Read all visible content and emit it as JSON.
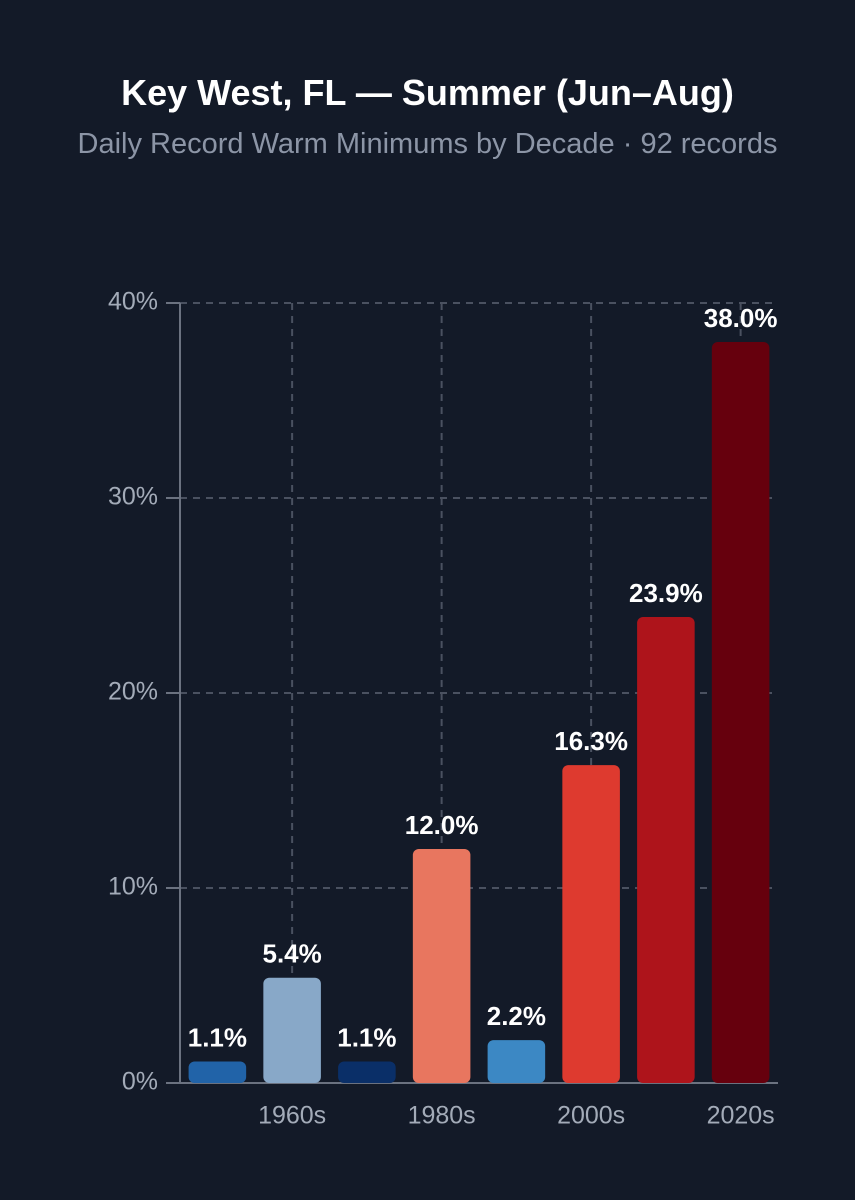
{
  "chart_data": {
    "type": "bar",
    "title": "Key West, FL — Summer (Jun–Aug)",
    "subtitle": "Daily Record Warm Minimums by Decade · 92 records",
    "categories": [
      null,
      "1960s",
      null,
      "1980s",
      null,
      "2000s",
      null,
      "2020s"
    ],
    "values": [
      1.1,
      5.4,
      1.1,
      12.0,
      2.2,
      16.3,
      23.9,
      38.0
    ],
    "value_labels": [
      "1.1%",
      "5.4%",
      "1.1%",
      "12.0%",
      "2.2%",
      "16.3%",
      "23.9%",
      "38.0%"
    ],
    "colors": [
      "#2163a8",
      "#88a8c8",
      "#0a2f68",
      "#e8765f",
      "#3c88c4",
      "#de3a2f",
      "#ae141b",
      "#66000d"
    ],
    "ylim": [
      0,
      40
    ],
    "yticks": [
      {
        "value": 0,
        "label": "0%"
      },
      {
        "value": 10,
        "label": "10%"
      },
      {
        "value": 20,
        "label": "20%"
      },
      {
        "value": 30,
        "label": "30%"
      },
      {
        "value": 40,
        "label": "40%"
      }
    ],
    "grid": true
  }
}
